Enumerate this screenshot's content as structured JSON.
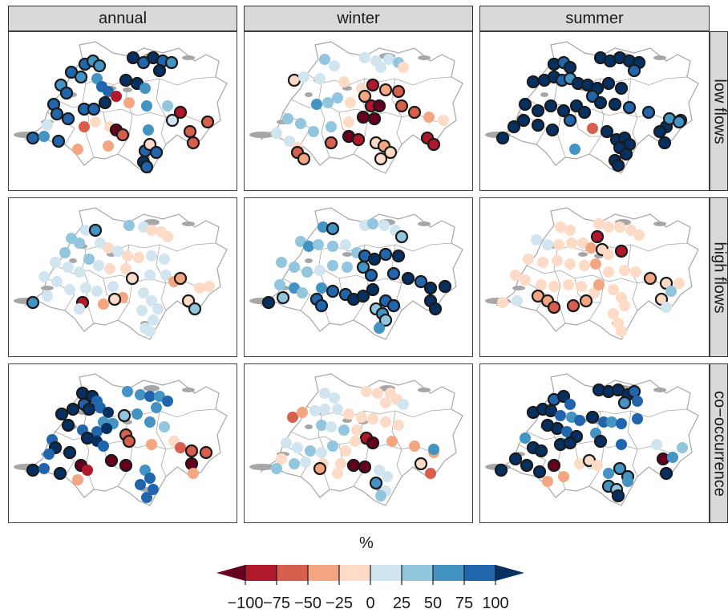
{
  "columns": [
    "annual",
    "winter",
    "summer"
  ],
  "rows": [
    "low flows",
    "high flows",
    "co−occurrence"
  ],
  "legend": {
    "unit_label": "%",
    "ticks": [
      "−100",
      "−75",
      "−50",
      "−25",
      "0",
      "25",
      "50",
      "75",
      "100"
    ],
    "colors": [
      "#67001f",
      "#b2182b",
      "#d6604d",
      "#f4a582",
      "#fddbc7",
      "#d1e5f0",
      "#92c5de",
      "#4393c3",
      "#2166ac",
      "#053061"
    ]
  },
  "map_colors": {
    "border": "#a6a6a6",
    "lake": "#a6a6a6",
    "ring": "#1a1a1a"
  }
}
